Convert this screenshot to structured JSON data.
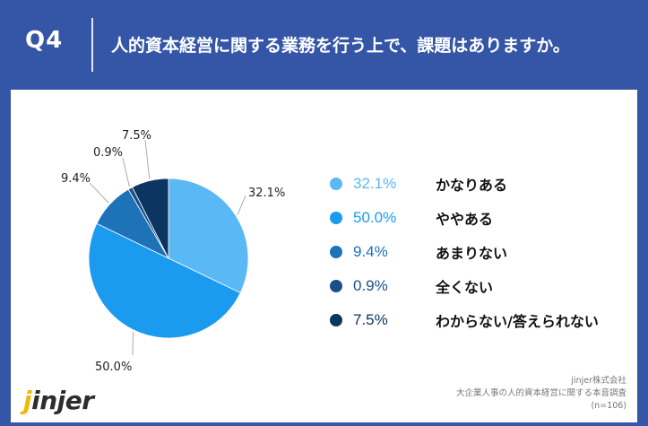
{
  "header": {
    "question_label": "Q4",
    "title": "人的資本経営に関する業務を行う上で、課題はありますか。"
  },
  "chart_data": {
    "type": "pie",
    "title": "",
    "unit": "%",
    "slices": [
      {
        "label": "かなりある",
        "value": 32.1,
        "display": "32.1%",
        "color": "#5ab8f5"
      },
      {
        "label": "ややある",
        "value": 50.0,
        "display": "50.0%",
        "color": "#1a9bef"
      },
      {
        "label": "あまりない",
        "value": 9.4,
        "display": "9.4%",
        "color": "#1d72b8"
      },
      {
        "label": "全くない",
        "value": 0.9,
        "display": "0.9%",
        "color": "#1b4f8a"
      },
      {
        "label": "わからない/答えられない",
        "value": 7.5,
        "display": "7.5%",
        "color": "#0d3561"
      }
    ],
    "legend_placement": "right"
  },
  "logo": {
    "prefix": "j",
    "text": "injer"
  },
  "source": {
    "company": "jinjer株式会社",
    "survey": "大企業人事の人的資本経営に関する本音調査",
    "sample": "(n=106)"
  }
}
